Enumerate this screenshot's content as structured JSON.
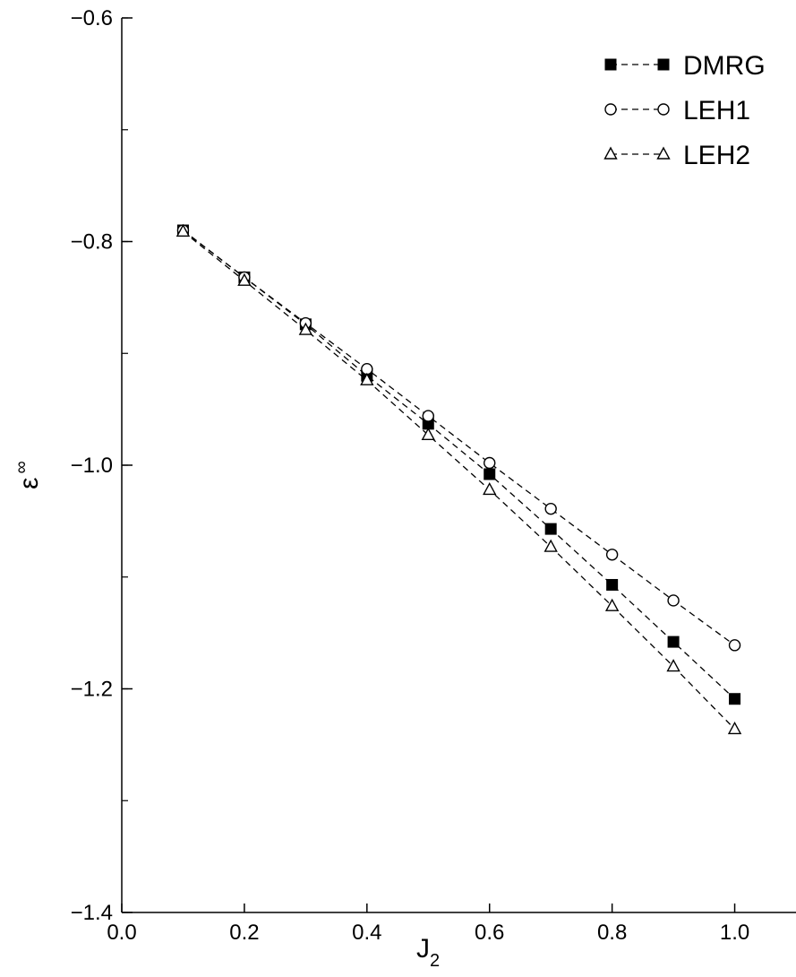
{
  "chart_data": {
    "type": "line",
    "title": "",
    "xlabel": {
      "main": "J",
      "subscript": "2"
    },
    "ylabel": {
      "main": "ε",
      "superscript": "∞"
    },
    "xlim": [
      0.0,
      1.1
    ],
    "ylim": [
      -1.4,
      -0.6
    ],
    "xticks": [
      0.0,
      0.2,
      0.4,
      0.6,
      0.8,
      1.0
    ],
    "xtick_labels": [
      "0.0",
      "0.2",
      "0.4",
      "0.6",
      "0.8",
      "1.0"
    ],
    "yticks": [
      -1.4,
      -1.2,
      -1.0,
      -0.8,
      -0.6
    ],
    "ytick_labels": [
      "−1.4",
      "−1.2",
      "−1.0",
      "−0.8",
      "−0.6"
    ],
    "y_minor_step": 0.1,
    "grid": false,
    "legend_position": "top-right",
    "x": [
      0.1,
      0.2,
      0.3,
      0.4,
      0.5,
      0.6,
      0.7,
      0.8,
      0.9,
      1.0
    ],
    "series": [
      {
        "name": "DMRG",
        "marker": "filled-square",
        "line_style": "dashed",
        "color": "#000000",
        "values": [
          -0.79,
          -0.832,
          -0.874,
          -0.92,
          -0.963,
          -1.008,
          -1.057,
          -1.107,
          -1.158,
          -1.209
        ]
      },
      {
        "name": "LEH1",
        "marker": "open-circle",
        "line_style": "dashed",
        "color": "#000000",
        "values": [
          -0.79,
          -0.832,
          -0.873,
          -0.914,
          -0.956,
          -0.998,
          -1.039,
          -1.08,
          -1.121,
          -1.161
        ]
      },
      {
        "name": "LEH2",
        "marker": "open-triangle",
        "line_style": "dashed",
        "color": "#000000",
        "values": [
          -0.791,
          -0.835,
          -0.879,
          -0.924,
          -0.973,
          -1.022,
          -1.073,
          -1.126,
          -1.18,
          -1.236
        ]
      }
    ]
  }
}
